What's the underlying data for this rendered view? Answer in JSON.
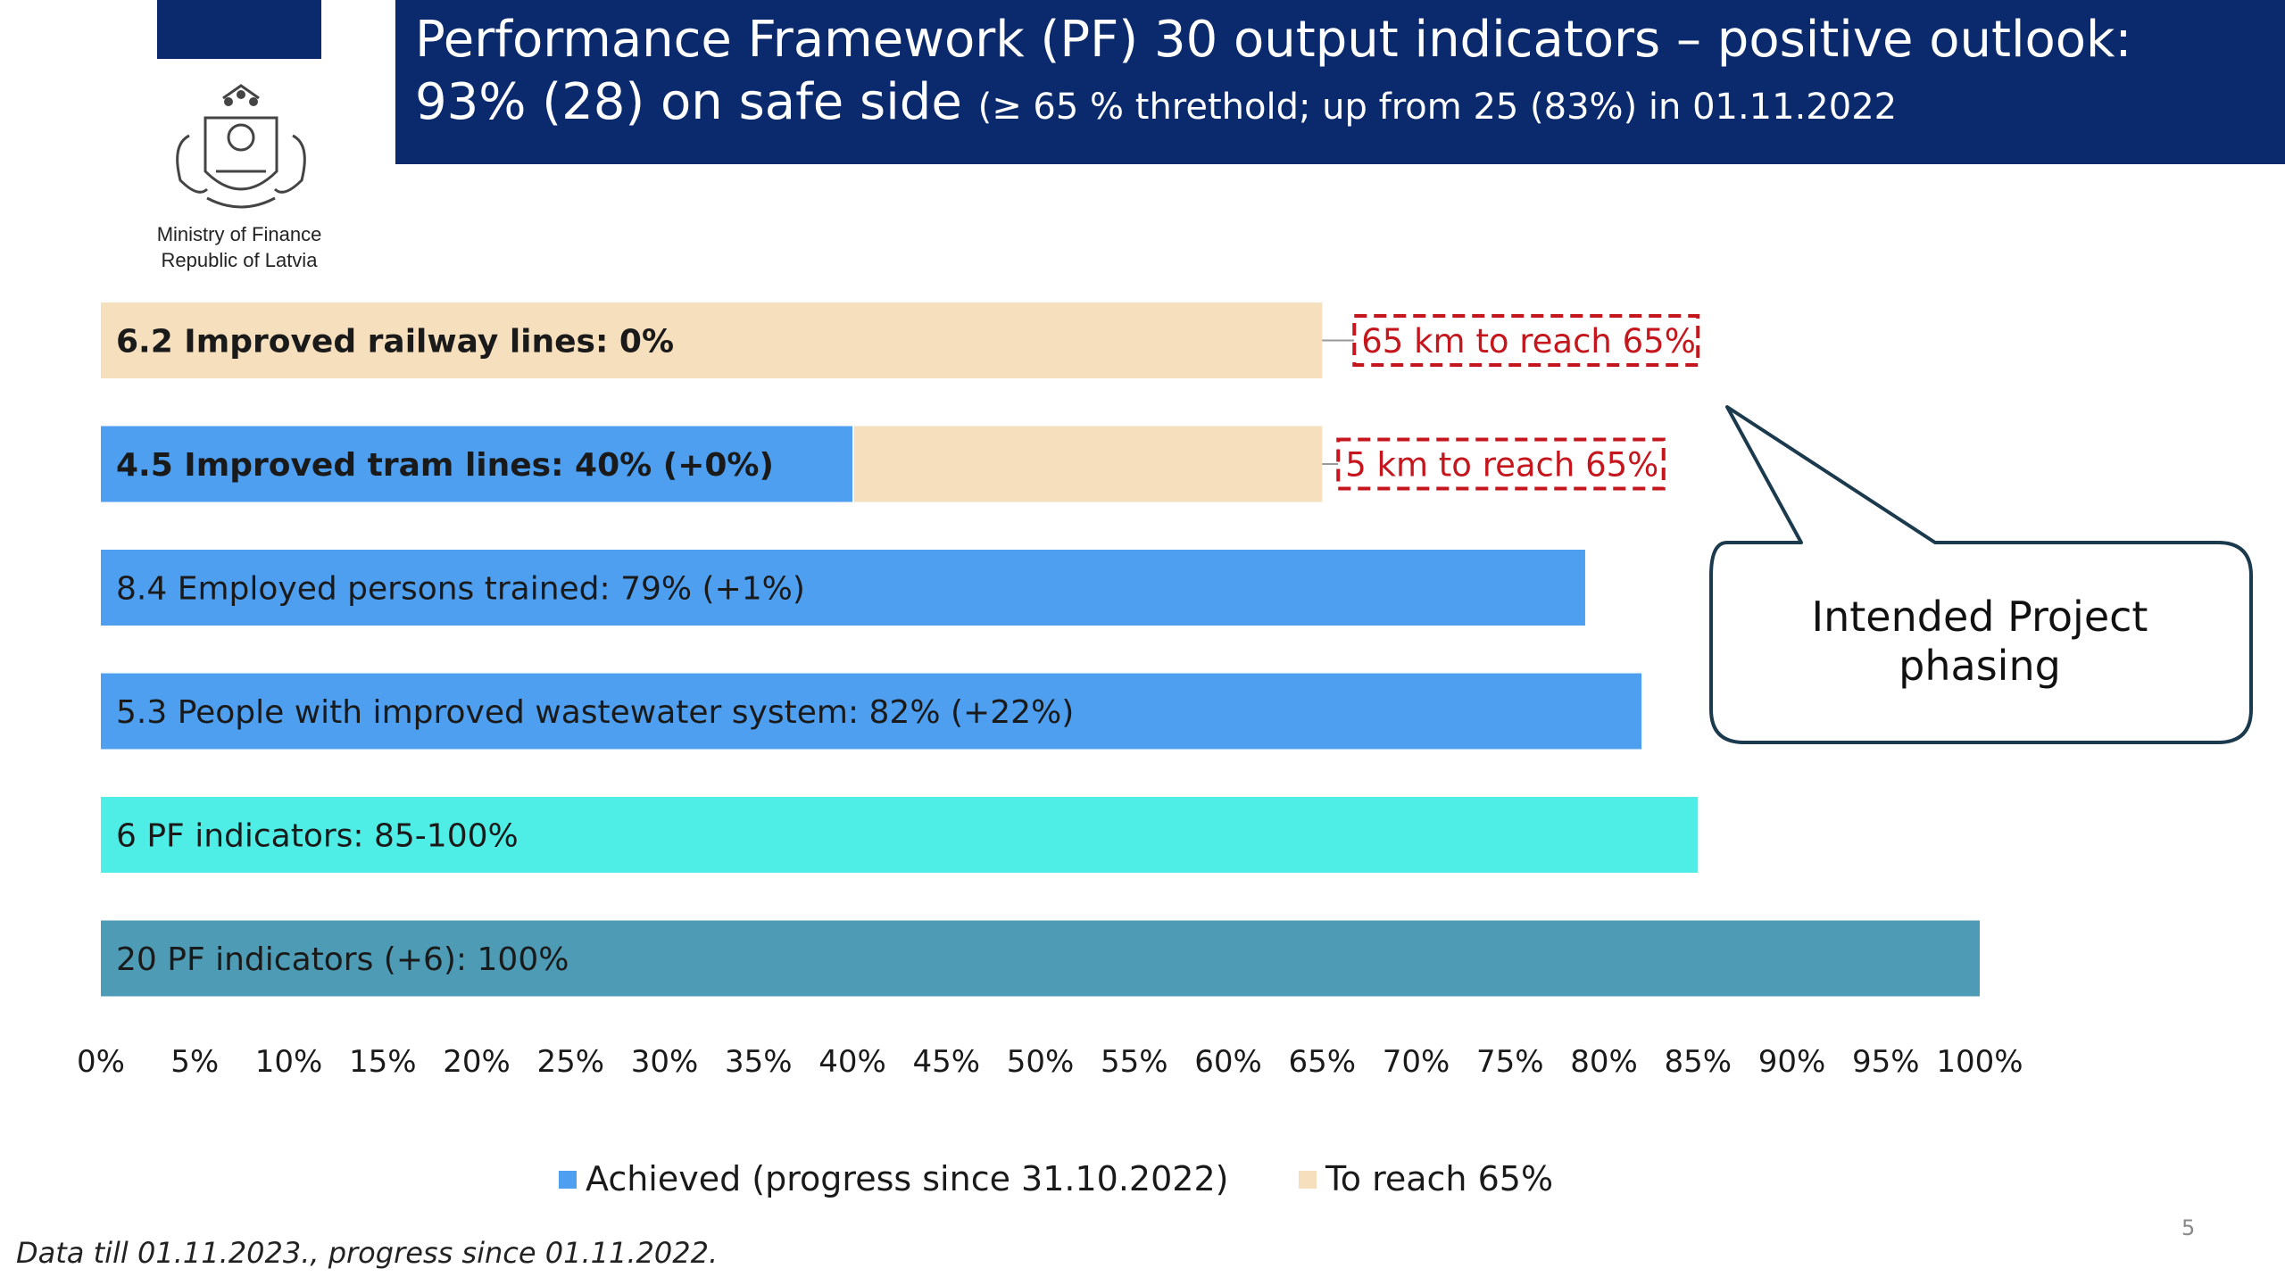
{
  "header": {
    "title_line1": "Performance Framework (PF) 30 output indicators – positive outlook:",
    "title_line2_main": "93% (28) on safe side",
    "title_line2_small": "(≥ 65 % threthold; up from 25 (83%) in 01.11.2022"
  },
  "logo": {
    "org_line1": "Ministry of Finance",
    "org_line2": "Republic of Latvia",
    "emblem": "latvia-coat-of-arms-icon",
    "brand_color": "#0b2a6e"
  },
  "callout": {
    "text_line1": "Intended Project",
    "text_line2": "phasing"
  },
  "footnote": "Data till 01.11.2023., progress since 01.11.2022.",
  "page_number": "5",
  "chart_data": {
    "type": "bar",
    "orientation": "horizontal",
    "stacked": true,
    "xlim": [
      0,
      100
    ],
    "x_unit": "%",
    "x_ticks": [
      "0%",
      "5%",
      "10%",
      "15%",
      "20%",
      "25%",
      "30%",
      "35%",
      "40%",
      "45%",
      "50%",
      "55%",
      "60%",
      "65%",
      "70%",
      "75%",
      "80%",
      "85%",
      "90%",
      "95%",
      "100%"
    ],
    "legend_position": "bottom",
    "legend": [
      {
        "label": "Achieved (progress since 31.10.2022)",
        "color": "#4e9ff0"
      },
      {
        "label": "To reach 65%",
        "color": "#f5dfbd"
      }
    ],
    "bars": [
      {
        "label": "6.2 Improved railway lines: 0%",
        "bold": true,
        "achieved": 0,
        "to_reach": 65,
        "color": "#4e9ff0",
        "annotation": "65 km to reach 65%"
      },
      {
        "label": "4.5 Improved tram lines: 40% (+0%)",
        "bold": true,
        "achieved": 40,
        "to_reach": 25,
        "color": "#4e9ff0",
        "annotation": "5 km to reach 65%"
      },
      {
        "label": "8.4 Employed persons trained: 79% (+1%)",
        "bold": false,
        "achieved": 79,
        "to_reach": 0,
        "color": "#4e9ff0"
      },
      {
        "label": "5.3 People with improved wastewater system: 82% (+22%)",
        "bold": false,
        "achieved": 82,
        "to_reach": 0,
        "color": "#4e9ff0"
      },
      {
        "label": "6 PF indicators: 85-100%",
        "bold": false,
        "achieved": 85,
        "to_reach": 0,
        "color": "#4eeee6"
      },
      {
        "label": "20 PF indicators (+6): 100%",
        "bold": false,
        "achieved": 100,
        "to_reach": 0,
        "color": "#4d9bb4"
      }
    ]
  }
}
